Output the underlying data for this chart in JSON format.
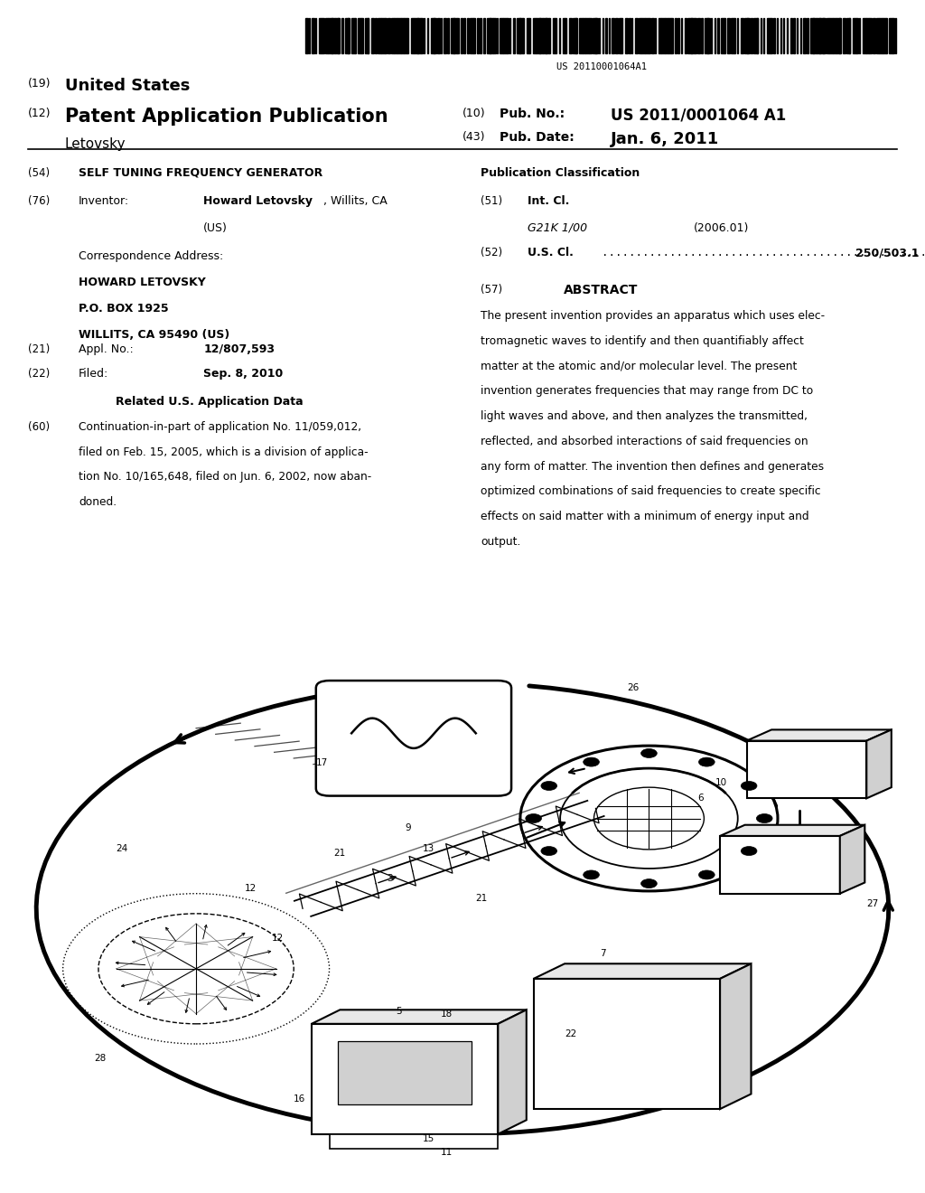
{
  "bg_color": "#ffffff",
  "barcode_text": "US 20110001064A1",
  "header_left_line1_num": "(19)",
  "header_left_line1_text": "United States",
  "header_left_line2_num": "(12)",
  "header_left_line2_text": "Patent Application Publication",
  "header_left_line3": "Letovsky",
  "header_right_line1_num": "(10)",
  "header_right_line1_label": "Pub. No.:",
  "header_right_line1_val": "US 2011/0001064 A1",
  "header_right_line2_num": "(43)",
  "header_right_line2_label": "Pub. Date:",
  "header_right_line2_val": "Jan. 6, 2011",
  "section54_num": "(54)",
  "section54_title": "SELF TUNING FREQUENCY GENERATOR",
  "section76_num": "(76)",
  "section76_label": "Inventor:",
  "section76_name": "Howard Letovsky",
  "section76_loc": ", Willits, CA",
  "section76_country": "(US)",
  "corr_label": "Correspondence Address:",
  "corr_name": "HOWARD LETOVSKY",
  "corr_addr1": "P.O. BOX 1925",
  "corr_addr2": "WILLITS, CA 95490 (US)",
  "section21_num": "(21)",
  "section21_label": "Appl. No.:",
  "section21_val": "12/807,593",
  "section22_num": "(22)",
  "section22_label": "Filed:",
  "section22_val": "Sep. 8, 2010",
  "related_title": "Related U.S. Application Data",
  "section60_num": "(60)",
  "section60_line1": "Continuation-in-part of application No. 11/059,012,",
  "section60_line2": "filed on Feb. 15, 2005, which is a division of applica-",
  "section60_line3": "tion No. 10/165,648, filed on Jun. 6, 2002, now aban-",
  "section60_line4": "doned.",
  "pub_class_title": "Publication Classification",
  "section51_num": "(51)",
  "section51_label": "Int. Cl.",
  "section51_class": "G21K 1/00",
  "section51_year": "(2006.01)",
  "section52_num": "(52)",
  "section52_label": "U.S. Cl.",
  "section52_val": "250/503.1",
  "section57_num": "(57)",
  "section57_title": "ABSTRACT",
  "abstract_line1": "The present invention provides an apparatus which uses elec-",
  "abstract_line2": "tromagnetic waves to identify and then quantifiably affect",
  "abstract_line3": "matter at the atomic and/or molecular level. The present",
  "abstract_line4": "invention generates frequencies that may range from DC to",
  "abstract_line5": "light waves and above, and then analyzes the transmitted,",
  "abstract_line6": "reflected, and absorbed interactions of said frequencies on",
  "abstract_line7": "any form of matter. The invention then defines and generates",
  "abstract_line8": "optimized combinations of said frequencies to create specific",
  "abstract_line9": "effects on said matter with a minimum of energy input and",
  "abstract_line10": "output."
}
